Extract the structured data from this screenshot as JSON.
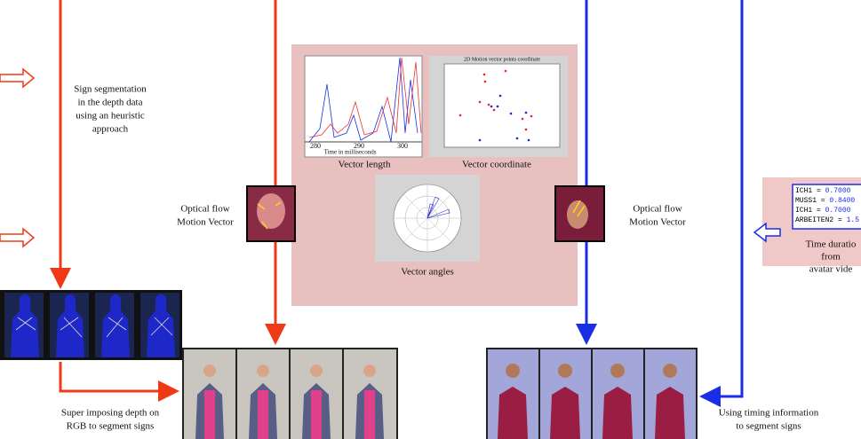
{
  "left_column": {
    "segmentation_note": [
      "Sign segmentation",
      "in the depth data",
      "using an heuristic",
      "approach"
    ],
    "optical_flow_label": [
      "Optical flow",
      "Motion Vector"
    ],
    "depth_caption": [
      "Super imposing depth on",
      "RGB to segment signs"
    ]
  },
  "motion_panel": {
    "line_chart": {
      "x_ticks": [
        "280",
        "290",
        "300"
      ],
      "x_label": "Time in milliseconds",
      "caption": "Vector length"
    },
    "scatter": {
      "title": "2D Motion vector points coordinate",
      "caption": "Vector coordinate"
    },
    "polar": {
      "caption": "Vector angles"
    }
  },
  "right_column": {
    "optical_flow_label": [
      "Optical flow",
      "Motion Vector"
    ],
    "timing_caption": [
      "Using timing information",
      "to segment signs"
    ],
    "timing_box": {
      "lines": [
        {
          "name": "ICH1 = ",
          "value": "0.7000"
        },
        {
          "name": "MUSS1 = ",
          "value": "0.8400"
        },
        {
          "name": "ICH1 = ",
          "value": "0.7000"
        },
        {
          "name": "ARBEITEN2 = ",
          "value": "1.5"
        }
      ],
      "caption": [
        "Time duratio",
        "from",
        "avatar vide"
      ]
    }
  }
}
